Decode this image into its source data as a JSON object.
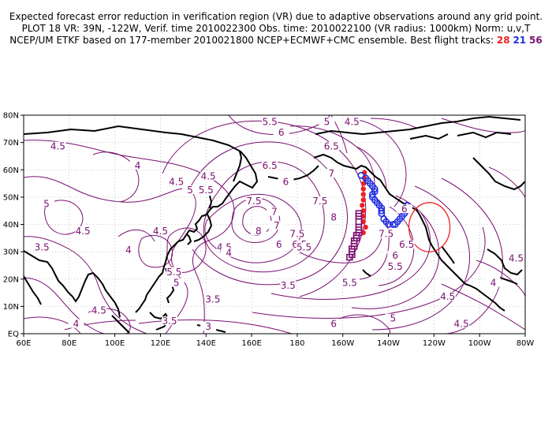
{
  "header": {
    "line1": "Expected forecast error reduction in verification region (VR) due to adaptive observations around any grid point.",
    "line2": "PLOT 18 VR: 39N, -122W, Verif. time 2010022300 Obs. time: 2010022100 (VR radius: 1000km) Norm: u,v,T",
    "line3_prefix": "NCEP/UM ETKF based on 177-member 2010021800 NCEP+ECMWF+CMC ensemble. Best flight tracks:",
    "track_red": "28",
    "track_blue": "21",
    "track_purple": "56"
  },
  "axes": {
    "lon_labels": [
      "60E",
      "80E",
      "100E",
      "120E",
      "140E",
      "160E",
      "180",
      "160W",
      "140W",
      "120W",
      "100W",
      "80W"
    ],
    "lat_labels": [
      "EQ",
      "10N",
      "20N",
      "30N",
      "40N",
      "50N",
      "60N",
      "70N",
      "80N"
    ]
  },
  "colors": {
    "contour": "#7a1070",
    "coast": "#000000",
    "grid": "#999999",
    "track_red": "#ee2020",
    "track_blue": "#2030e0",
    "track_purple": "#7a1070",
    "vr_circle": "#ee2020"
  },
  "verification_region": {
    "lat": 39,
    "lon": -122
  },
  "contour_labels": [
    {
      "v": "4.5",
      "lon": 75,
      "lat": 68
    },
    {
      "v": "5",
      "lon": 70,
      "lat": 47
    },
    {
      "v": "4",
      "lon": 110,
      "lat": 61
    },
    {
      "v": "4.5",
      "lon": 86,
      "lat": 37
    },
    {
      "v": "5",
      "lon": 133,
      "lat": 52
    },
    {
      "v": "4.5",
      "lon": 127,
      "lat": 55
    },
    {
      "v": "5.5",
      "lon": 140,
      "lat": 52
    },
    {
      "v": "4.5",
      "lon": 141,
      "lat": 57
    },
    {
      "v": "4.5",
      "lon": 120,
      "lat": 37
    },
    {
      "v": "3.5",
      "lon": 68,
      "lat": 31
    },
    {
      "v": "4",
      "lon": 106,
      "lat": 30
    },
    {
      "v": "7.5",
      "lon": 161,
      "lat": 48
    },
    {
      "v": "8",
      "lon": 163,
      "lat": 37
    },
    {
      "v": "7",
      "lon": 170,
      "lat": 44
    },
    {
      "v": "7",
      "lon": 171,
      "lat": 39
    },
    {
      "v": "6.5",
      "lon": 168,
      "lat": 61
    },
    {
      "v": "6",
      "lon": 175,
      "lat": 55
    },
    {
      "v": "7",
      "lon": 195,
      "lat": 58
    },
    {
      "v": "7.5",
      "lon": 190,
      "lat": 48
    },
    {
      "v": "8",
      "lon": 196,
      "lat": 42
    },
    {
      "v": "7.5",
      "lon": 180,
      "lat": 36
    },
    {
      "v": "6.5",
      "lon": 181,
      "lat": 32
    },
    {
      "v": "5.5",
      "lon": 183,
      "lat": 31
    },
    {
      "v": "6",
      "lon": 172,
      "lat": 32
    },
    {
      "v": "4.5",
      "lon": 148,
      "lat": 31
    },
    {
      "v": "4",
      "lon": 150,
      "lat": 29
    },
    {
      "v": "5.5",
      "lon": 168,
      "lat": 77
    },
    {
      "v": "5",
      "lon": 193,
      "lat": 77
    },
    {
      "v": "4.5",
      "lon": 204,
      "lat": 77
    },
    {
      "v": "6",
      "lon": 173,
      "lat": 73
    },
    {
      "v": "6.5",
      "lon": 195,
      "lat": 68
    },
    {
      "v": "7.5",
      "lon": 219,
      "lat": 36
    },
    {
      "v": "6.5",
      "lon": 228,
      "lat": 32
    },
    {
      "v": "6",
      "lon": 223,
      "lat": 28
    },
    {
      "v": "5.5",
      "lon": 223,
      "lat": 24
    },
    {
      "v": "5.5",
      "lon": 126,
      "lat": 22
    },
    {
      "v": "5",
      "lon": 127,
      "lat": 18
    },
    {
      "v": "3.5",
      "lon": 143,
      "lat": 12
    },
    {
      "v": "3.5",
      "lon": 124,
      "lat": 4
    },
    {
      "v": "3",
      "lon": 141,
      "lat": 2
    },
    {
      "v": "4.5",
      "lon": 93,
      "lat": 8
    },
    {
      "v": "4",
      "lon": 83,
      "lat": 3
    },
    {
      "v": "3.5",
      "lon": 176,
      "lat": 17
    },
    {
      "v": "5.5",
      "lon": 203,
      "lat": 18
    },
    {
      "v": "6",
      "lon": 196,
      "lat": 3
    },
    {
      "v": "5",
      "lon": 222,
      "lat": 5
    },
    {
      "v": "4.5",
      "lon": 246,
      "lat": 13
    },
    {
      "v": "4.5",
      "lon": 252,
      "lat": 3
    },
    {
      "v": "4",
      "lon": 266,
      "lat": 18
    },
    {
      "v": "4.5",
      "lon": 276,
      "lat": 27
    },
    {
      "v": "6",
      "lon": 227,
      "lat": 45
    }
  ],
  "tracks": {
    "red": [
      [
        59,
        -150.5
      ],
      [
        57,
        -150.5
      ],
      [
        55,
        -150.8
      ],
      [
        53,
        -151
      ],
      [
        51,
        -151
      ],
      [
        49,
        -151
      ],
      [
        47,
        -151.5
      ],
      [
        45,
        -151
      ],
      [
        43,
        -151
      ],
      [
        41,
        -151
      ],
      [
        39,
        -150
      ],
      [
        37,
        -151
      ]
    ],
    "blue": [
      [
        58,
        -152
      ],
      [
        57,
        -150
      ],
      [
        56,
        -149
      ],
      [
        55,
        -148
      ],
      [
        54,
        -147
      ],
      [
        53,
        -146
      ],
      [
        52,
        -146
      ],
      [
        51,
        -147
      ],
      [
        50,
        -147
      ],
      [
        49,
        -146
      ],
      [
        48,
        -145
      ],
      [
        47,
        -144
      ],
      [
        46,
        -143
      ],
      [
        45,
        -143
      ],
      [
        44,
        -143
      ],
      [
        42,
        -142
      ],
      [
        41,
        -141
      ],
      [
        40,
        -140
      ],
      [
        40,
        -138
      ],
      [
        40,
        -137
      ],
      [
        41,
        -136
      ],
      [
        42,
        -135
      ],
      [
        43,
        -134
      ],
      [
        44,
        -133
      ],
      [
        45,
        -132
      ],
      [
        47,
        -132
      ]
    ],
    "purple": [
      [
        44,
        -153
      ],
      [
        43,
        -153
      ],
      [
        41,
        -153
      ],
      [
        39,
        -153
      ],
      [
        38,
        -153
      ],
      [
        37,
        -153
      ],
      [
        36,
        -154
      ],
      [
        35,
        -154
      ],
      [
        34,
        -155
      ],
      [
        33,
        -155
      ],
      [
        32,
        -155
      ],
      [
        31,
        -156
      ],
      [
        30,
        -156
      ],
      [
        29,
        -156
      ],
      [
        28,
        -157
      ]
    ]
  }
}
